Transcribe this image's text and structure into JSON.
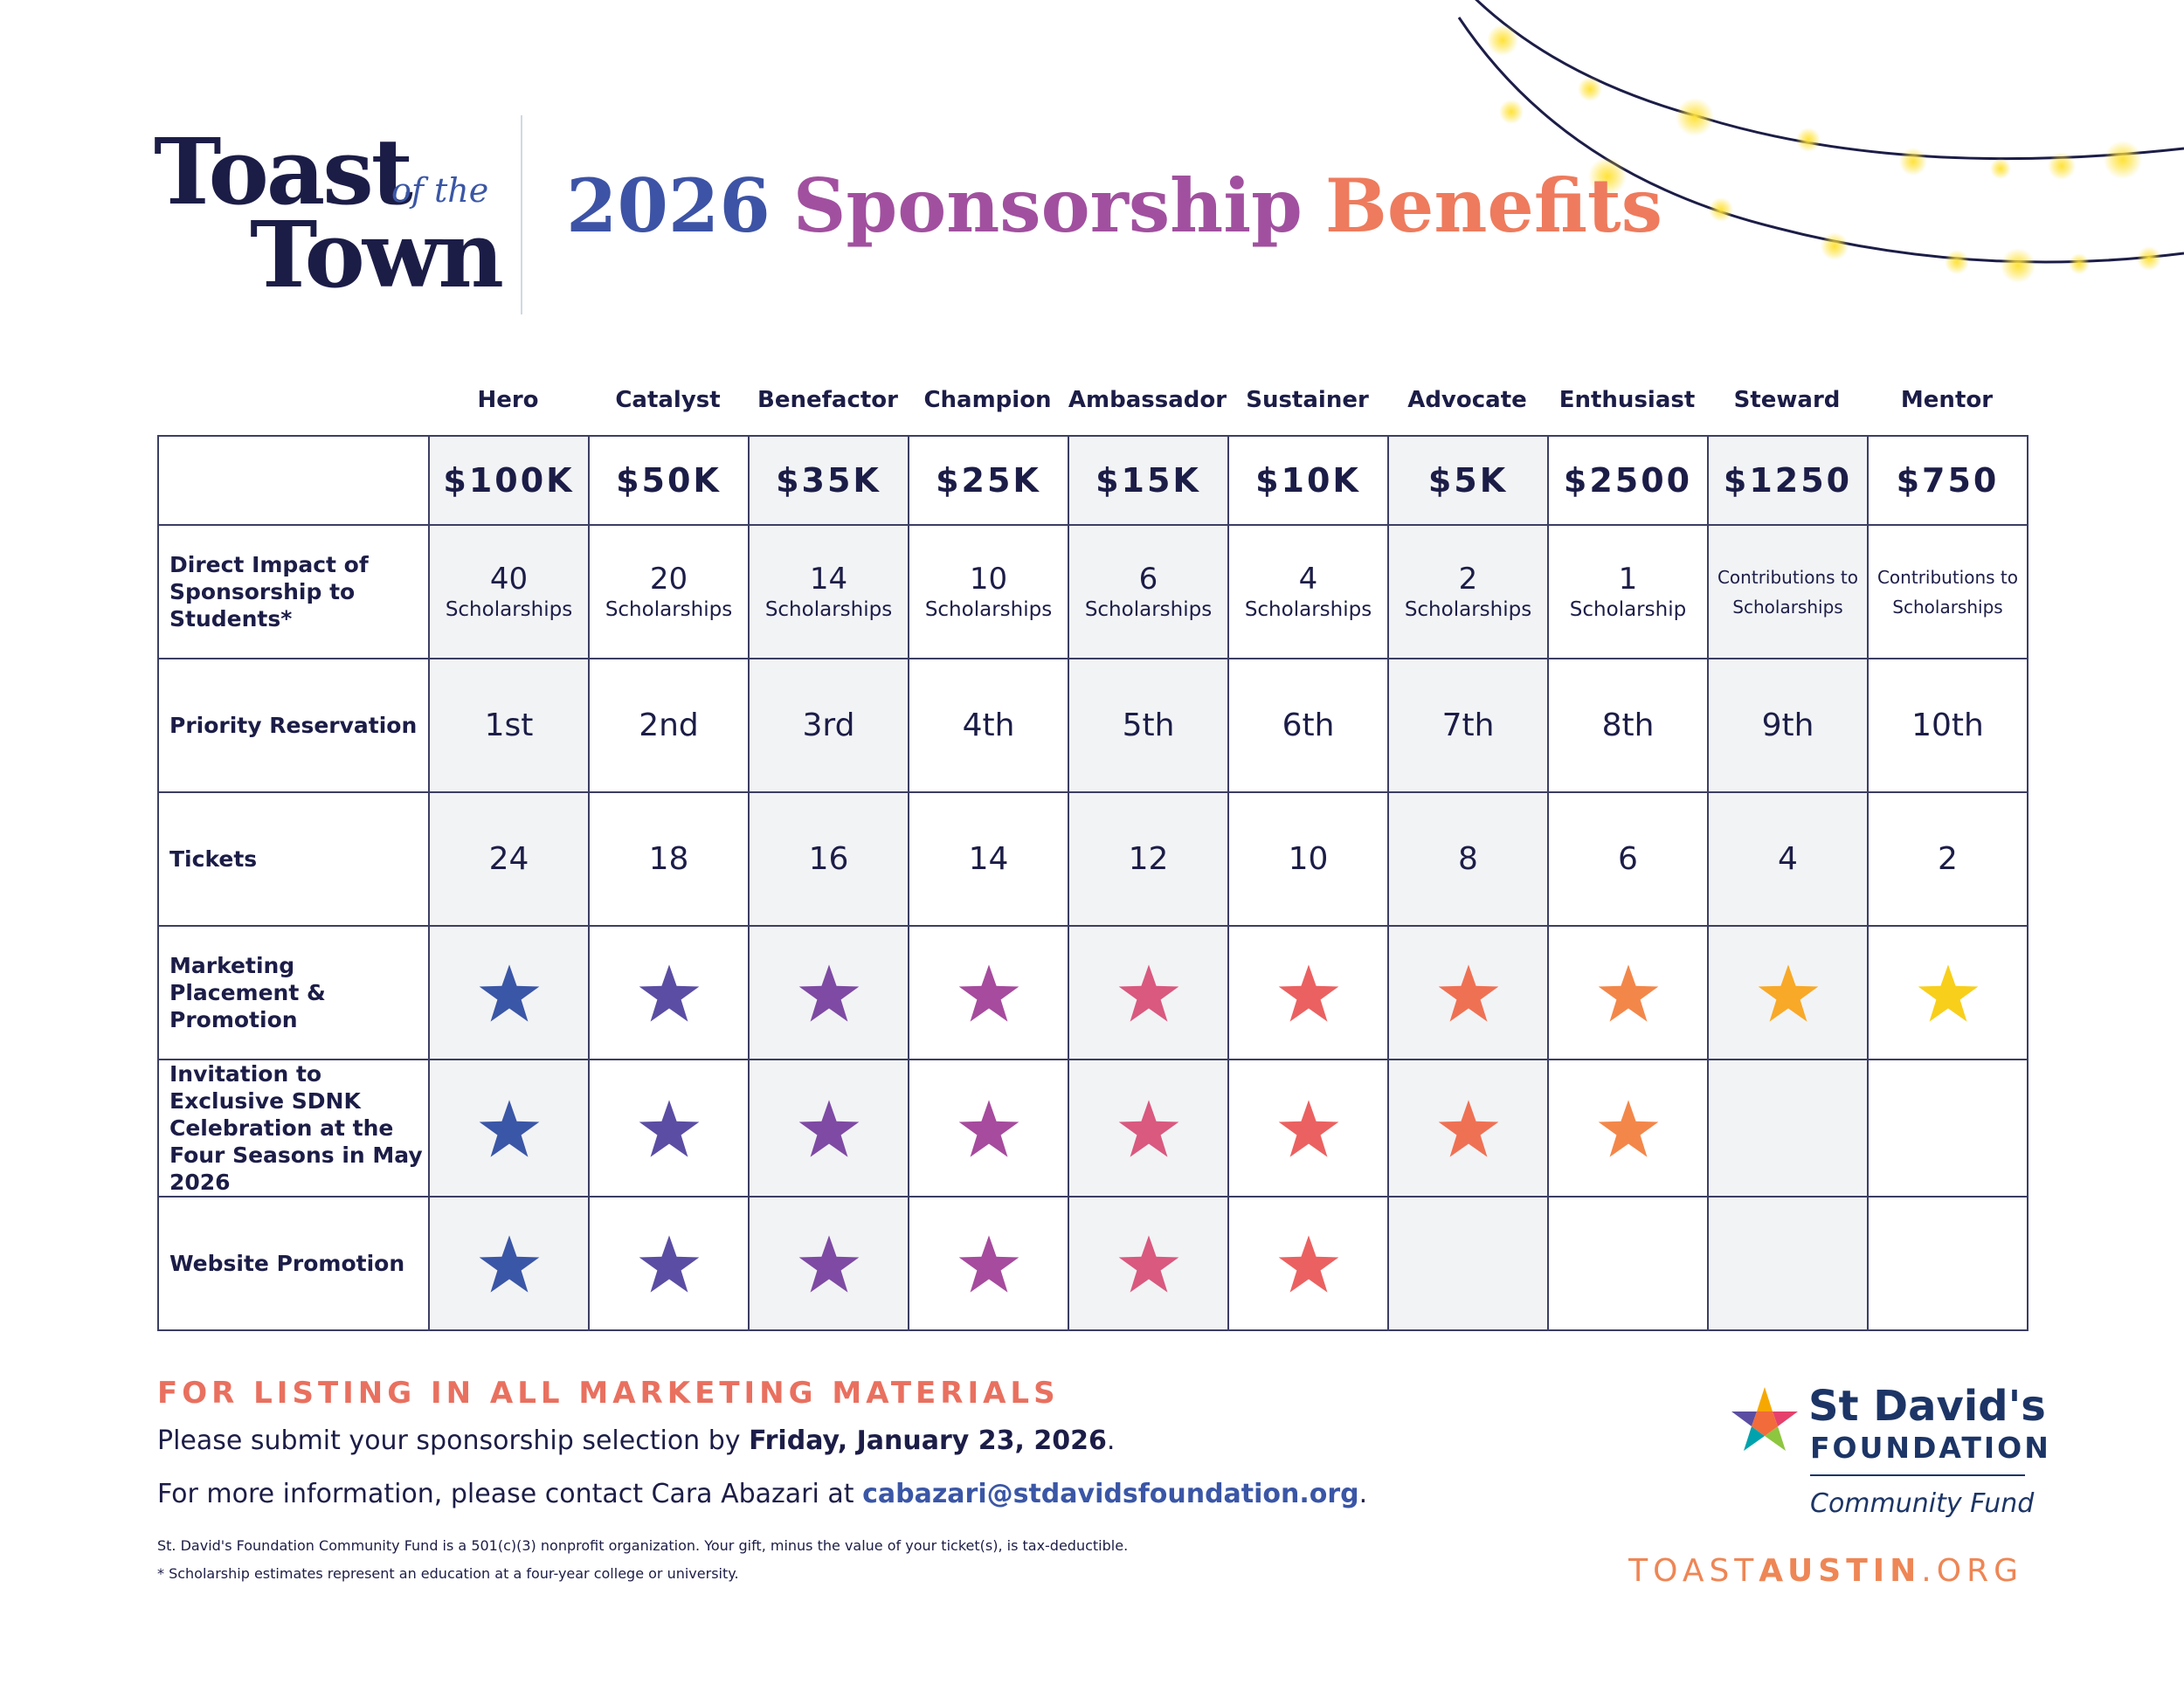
{
  "brand": {
    "logo_line1": "Toast",
    "logo_small": "of the",
    "logo_line2": "Town",
    "headline": [
      "2026",
      "Sponsorship",
      "Benefits"
    ],
    "colors": {
      "navy": "#1c1d47",
      "gradient_start": "#3a56a6",
      "gradient_end": "#ef7b5a",
      "coral": "#e9705f",
      "link_blue": "#3a56a6",
      "light_bulb": "#ffe23a"
    }
  },
  "tiers": [
    {
      "name": "Hero",
      "price": "$100K",
      "impact_number": "40",
      "impact_text": "Scholarships",
      "priority": "1st",
      "tickets": "24",
      "star_color": "#3a56a6",
      "marketing": true,
      "invitation": true,
      "website": true
    },
    {
      "name": "Catalyst",
      "price": "$50K",
      "impact_number": "20",
      "impact_text": "Scholarships",
      "priority": "2nd",
      "tickets": "18",
      "star_color": "#5b4da3",
      "marketing": true,
      "invitation": true,
      "website": true
    },
    {
      "name": "Benefactor",
      "price": "$35K",
      "impact_number": "14",
      "impact_text": "Scholarships",
      "priority": "3rd",
      "tickets": "16",
      "star_color": "#7e4aa3",
      "marketing": true,
      "invitation": true,
      "website": true
    },
    {
      "name": "Champion",
      "price": "$25K",
      "impact_number": "10",
      "impact_text": "Scholarships",
      "priority": "4th",
      "tickets": "14",
      "star_color": "#a64b9d",
      "marketing": true,
      "invitation": true,
      "website": true
    },
    {
      "name": "Ambassador",
      "price": "$15K",
      "impact_number": "6",
      "impact_text": "Scholarships",
      "priority": "5th",
      "tickets": "12",
      "star_color": "#d9597f",
      "marketing": true,
      "invitation": true,
      "website": true
    },
    {
      "name": "Sustainer",
      "price": "$10K",
      "impact_number": "4",
      "impact_text": "Scholarships",
      "priority": "6th",
      "tickets": "10",
      "star_color": "#eb6161",
      "marketing": true,
      "invitation": true,
      "website": true
    },
    {
      "name": "Advocate",
      "price": "$5K",
      "impact_number": "2",
      "impact_text": "Scholarships",
      "priority": "7th",
      "tickets": "8",
      "star_color": "#ef7154",
      "marketing": true,
      "invitation": true,
      "website": false
    },
    {
      "name": "Enthusiast",
      "price": "$2500",
      "impact_number": "1",
      "impact_text": "Scholarship",
      "priority": "8th",
      "tickets": "6",
      "star_color": "#f3874a",
      "marketing": true,
      "invitation": true,
      "website": false
    },
    {
      "name": "Steward",
      "price": "$1250",
      "impact_number": "",
      "impact_text": "Contributions to Scholarships",
      "priority": "9th",
      "tickets": "4",
      "star_color": "#f8a928",
      "marketing": true,
      "invitation": false,
      "website": false
    },
    {
      "name": "Mentor",
      "price": "$750",
      "impact_number": "",
      "impact_text": "Contributions to Scholarships",
      "priority": "10th",
      "tickets": "2",
      "star_color": "#f8cf1b",
      "marketing": true,
      "invitation": false,
      "website": false
    }
  ],
  "row_labels": {
    "impact": "Direct Impact of Sponsorship to Students*",
    "priority": "Priority Reservation",
    "tickets": "Tickets",
    "marketing": "Marketing Placement & Promotion",
    "invitation": "Invitation to Exclusive SDNK Celebration at the Four Seasons in May 2026",
    "website": "Website Promotion"
  },
  "footer": {
    "heading": "FOR LISTING IN ALL MARKETING MATERIALS",
    "submit_prefix": "Please submit your sponsorship selection by ",
    "submit_date": "Friday, January 23, 2026",
    "submit_suffix": ".",
    "contact_prefix": "For more information, please contact Cara Abazari at ",
    "contact_email": "cabazari@stdavidsfoundation.org",
    "contact_suffix": ".",
    "fine_print_1": "St. David's Foundation Community Fund is a 501(c)(3) nonprofit organization. Your gift, minus the value of your ticket(s), is tax-deductible.",
    "fine_print_2": "* Scholarship estimates represent an education at a four-year college or university."
  },
  "foundation": {
    "name": "St David's",
    "subtitle": "FOUNDATION",
    "fund": "Community Fund"
  },
  "website": {
    "part1": "TOAST",
    "part2": "AUSTIN",
    "part3": ".ORG"
  }
}
